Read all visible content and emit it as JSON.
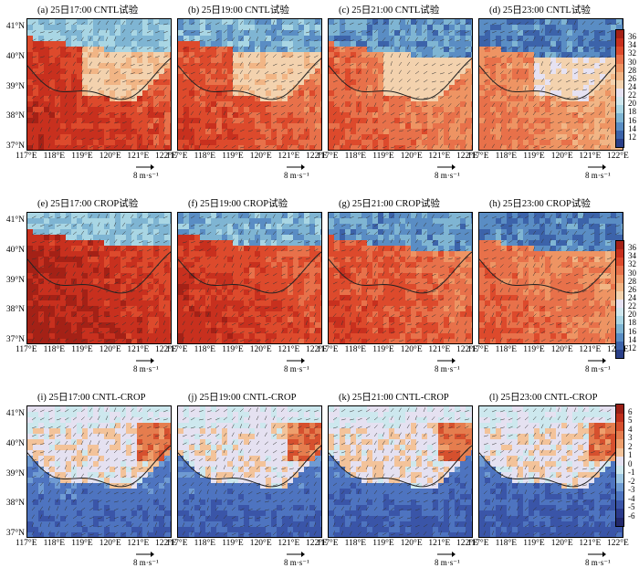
{
  "panels": [
    {
      "id": "a",
      "title": "(a) 25日17:00 CNTL试验",
      "kind": "cntl",
      "hour": 0
    },
    {
      "id": "b",
      "title": "(b) 25日19:00 CNTL试验",
      "kind": "cntl",
      "hour": 1
    },
    {
      "id": "c",
      "title": "(c) 25日21:00 CNTL试验",
      "kind": "cntl",
      "hour": 2
    },
    {
      "id": "d",
      "title": "(d) 25日23:00 CNTL试验",
      "kind": "cntl",
      "hour": 3
    },
    {
      "id": "e",
      "title": "(e) 25日17:00 CROP试验",
      "kind": "crop",
      "hour": 0
    },
    {
      "id": "f",
      "title": "(f) 25日19:00 CROP试验",
      "kind": "crop",
      "hour": 1
    },
    {
      "id": "g",
      "title": "(g) 25日21:00 CROP试验",
      "kind": "crop",
      "hour": 2
    },
    {
      "id": "h",
      "title": "(h) 25日23:00 CROP试验",
      "kind": "crop",
      "hour": 3
    },
    {
      "id": "i",
      "title": "(i) 25日17:00 CNTL-CROP",
      "kind": "diff",
      "hour": 0
    },
    {
      "id": "j",
      "title": "(j) 25日19:00 CNTL-CROP",
      "kind": "diff",
      "hour": 1
    },
    {
      "id": "k",
      "title": "(k) 25日21:00 CNTL-CROP",
      "kind": "diff",
      "hour": 2
    },
    {
      "id": "l",
      "title": "(l) 25日23:00 CNTL-CROP",
      "kind": "diff",
      "hour": 3
    }
  ],
  "axes": {
    "lat_labels": [
      "41°N",
      "40°N",
      "39°N",
      "38°N",
      "37°N"
    ],
    "lon_labels": [
      "117°E",
      "118°E",
      "119°E",
      "120°E",
      "121°E",
      "122°E"
    ]
  },
  "reference_vector": {
    "label": "8 m·s⁻¹"
  },
  "colorbars": [
    {
      "ticks": [
        "36",
        "34",
        "32",
        "30",
        "28",
        "26",
        "24",
        "22",
        "20",
        "18",
        "16",
        "14",
        "12"
      ],
      "colors": [
        "#a42116",
        "#c8301e",
        "#dd4a2c",
        "#e8714a",
        "#ee9463",
        "#f1b585",
        "#f3d2ae",
        "#e6e2f2",
        "#cfe7ee",
        "#a9d6e4",
        "#7fb5d3",
        "#5a8dc4",
        "#3c63aa",
        "#2a3f88"
      ]
    },
    {
      "ticks": [
        "36",
        "34",
        "32",
        "30",
        "28",
        "26",
        "24",
        "22",
        "20",
        "18",
        "16",
        "14",
        "12"
      ],
      "colors": [
        "#a42116",
        "#c8301e",
        "#dd4a2c",
        "#e8714a",
        "#ee9463",
        "#f1b585",
        "#f3d2ae",
        "#e6e2f2",
        "#cfe7ee",
        "#a9d6e4",
        "#7fb5d3",
        "#5a8dc4",
        "#3c63aa",
        "#2a3f88"
      ]
    },
    {
      "ticks": [
        "6",
        "5",
        "4",
        "3",
        "2",
        "1",
        "0",
        "-1",
        "-2",
        "-3",
        "-4",
        "-5",
        "-6"
      ],
      "colors": [
        "#9b1f16",
        "#bf2f1c",
        "#d6502e",
        "#e57d4e",
        "#ee9f6c",
        "#f3c39a",
        "#e5e1f1",
        "#cde8ee",
        "#9fc8e4",
        "#6f9bd3",
        "#4e74c0",
        "#3a55a8",
        "#2b3a8b",
        "#22286b"
      ]
    }
  ],
  "chart_data": [
    {
      "type": "heatmap",
      "panel": "a",
      "variable": "CNTL试验",
      "time": "25日17:00",
      "xlim": [
        117,
        122
      ],
      "ylim": [
        37,
        41
      ],
      "field_range": [
        12,
        36
      ]
    },
    {
      "type": "heatmap",
      "panel": "b",
      "variable": "CNTL试验",
      "time": "25日19:00",
      "xlim": [
        117,
        122
      ],
      "ylim": [
        37,
        41
      ],
      "field_range": [
        12,
        36
      ]
    },
    {
      "type": "heatmap",
      "panel": "c",
      "variable": "CNTL试验",
      "time": "25日21:00",
      "xlim": [
        117,
        122
      ],
      "ylim": [
        37,
        41
      ],
      "field_range": [
        12,
        36
      ]
    },
    {
      "type": "heatmap",
      "panel": "d",
      "variable": "CNTL试验",
      "time": "25日23:00",
      "xlim": [
        117,
        122
      ],
      "ylim": [
        37,
        41
      ],
      "field_range": [
        12,
        36
      ]
    },
    {
      "type": "heatmap",
      "panel": "e",
      "variable": "CROP试验",
      "time": "25日17:00",
      "xlim": [
        117,
        122
      ],
      "ylim": [
        37,
        41
      ],
      "field_range": [
        12,
        36
      ]
    },
    {
      "type": "heatmap",
      "panel": "f",
      "variable": "CROP试验",
      "time": "25日19:00",
      "xlim": [
        117,
        122
      ],
      "ylim": [
        37,
        41
      ],
      "field_range": [
        12,
        36
      ]
    },
    {
      "type": "heatmap",
      "panel": "g",
      "variable": "CROP试验",
      "time": "25日21:00",
      "xlim": [
        117,
        122
      ],
      "ylim": [
        37,
        41
      ],
      "field_range": [
        12,
        36
      ]
    },
    {
      "type": "heatmap",
      "panel": "h",
      "variable": "CROP试验",
      "time": "25日23:00",
      "xlim": [
        117,
        122
      ],
      "ylim": [
        37,
        41
      ],
      "field_range": [
        12,
        36
      ]
    },
    {
      "type": "heatmap",
      "panel": "i",
      "variable": "CNTL-CROP",
      "time": "25日17:00",
      "xlim": [
        117,
        122
      ],
      "ylim": [
        37,
        41
      ],
      "field_range": [
        -6,
        6
      ]
    },
    {
      "type": "heatmap",
      "panel": "j",
      "variable": "CNTL-CROP",
      "time": "25日19:00",
      "xlim": [
        117,
        122
      ],
      "ylim": [
        37,
        41
      ],
      "field_range": [
        -6,
        6
      ]
    },
    {
      "type": "heatmap",
      "panel": "k",
      "variable": "CNTL-CROP",
      "time": "25日21:00",
      "xlim": [
        117,
        122
      ],
      "ylim": [
        37,
        41
      ],
      "field_range": [
        -6,
        6
      ]
    },
    {
      "type": "heatmap",
      "panel": "l",
      "variable": "CNTL-CROP",
      "time": "25日23:00",
      "xlim": [
        117,
        122
      ],
      "ylim": [
        37,
        41
      ],
      "field_range": [
        -6,
        6
      ]
    }
  ]
}
